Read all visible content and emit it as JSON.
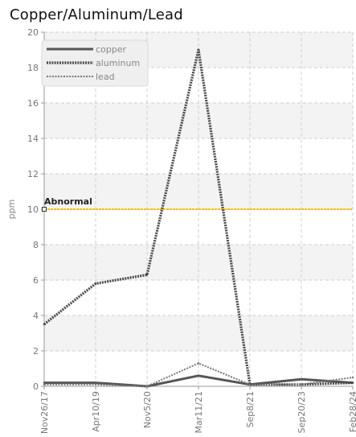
{
  "chart_data": {
    "type": "line",
    "title": "Copper/Aluminum/Lead",
    "xlabel": "",
    "ylabel": "ppm",
    "categories": [
      "Nov26/17",
      "Apr10/19",
      "Nov5/20",
      "Mar11/21",
      "Sep8/21",
      "Sep20/23",
      "Feb28/24"
    ],
    "ylim": [
      0,
      20
    ],
    "yticks": [
      0,
      2,
      4,
      6,
      8,
      10,
      12,
      14,
      16,
      18,
      20
    ],
    "grid": true,
    "legend_position": "top-left",
    "series": [
      {
        "name": "copper",
        "values": [
          0.2,
          0.2,
          0.0,
          0.6,
          0.1,
          0.4,
          0.2
        ],
        "style": "solid",
        "color": "#555555"
      },
      {
        "name": "aluminum",
        "values": [
          3.5,
          5.8,
          6.3,
          19.0,
          0.1,
          0.1,
          0.2
        ],
        "style": "dotted-thick",
        "color": "#4a4a4a"
      },
      {
        "name": "lead",
        "values": [
          0.1,
          0.1,
          0.0,
          1.3,
          0.1,
          0.1,
          0.5
        ],
        "style": "dotted",
        "color": "#777777"
      }
    ],
    "threshold": {
      "label": "Abnormal",
      "value": 10,
      "color": "#f5c20b"
    }
  }
}
